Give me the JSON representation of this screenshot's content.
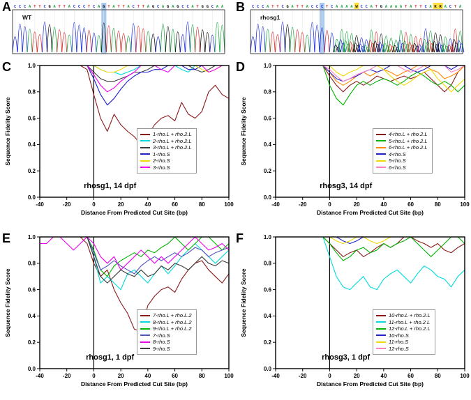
{
  "panel_letters": [
    "A",
    "B",
    "C",
    "D",
    "E",
    "F"
  ],
  "chromatograms": {
    "A": {
      "label": "WT",
      "sequence": "CCCATTCGATTACCCTCAGTATTACTTAGCAGAGCCATGGCAA",
      "highlight_index": 18,
      "ambiguous_indices": [],
      "messy_from": -1,
      "highlight_color": "#a9c9ee",
      "ambiguous_color": "#ffdf3f"
    },
    "B": {
      "label": "rhosg1",
      "sequence": "CCCATTCGATTACCCTCAAAAWCCATGAAAATATTCAKRACTA",
      "highlight_index": 14,
      "ambiguous_indices": [
        21,
        37,
        38
      ],
      "messy_from": 17,
      "highlight_color": "#a9c9ee",
      "ambiguous_color": "#ffdf3f"
    }
  },
  "base_colors": {
    "A": "#1faa45",
    "C": "#2233dd",
    "G": "#111111",
    "T": "#e03030"
  },
  "chart_data": [
    {
      "type": "line",
      "panel": "C",
      "annotation": "rhosg1, 14 dpf",
      "xlabel": "Distance From Predicted Cut Site (bp)",
      "ylabel": "Sequence Fidelity Score",
      "xlim": [
        -40,
        100
      ],
      "ylim": [
        0.0,
        1.0
      ],
      "xticks": [
        -40,
        -20,
        0,
        20,
        40,
        60,
        80,
        100
      ],
      "yticks": [
        0.0,
        0.2,
        0.4,
        0.6,
        0.8,
        1.0
      ],
      "cut_site_x": 0,
      "legend_position": "right-middle",
      "grid": false,
      "x": [
        -40,
        -35,
        -30,
        -25,
        -20,
        -15,
        -10,
        -5,
        0,
        5,
        10,
        15,
        20,
        25,
        30,
        35,
        40,
        45,
        50,
        55,
        60,
        65,
        70,
        75,
        80,
        85,
        90,
        95,
        100
      ],
      "series": [
        {
          "name": "1-rho.L + rho.2.L",
          "color": "#8b1a1a",
          "values": [
            1,
            1,
            1,
            1,
            1,
            1,
            1,
            0.97,
            0.78,
            0.6,
            0.5,
            0.63,
            0.55,
            0.5,
            0.46,
            0.4,
            0.47,
            0.55,
            0.6,
            0.62,
            0.58,
            0.72,
            0.63,
            0.6,
            0.65,
            0.8,
            0.85,
            0.78,
            0.75
          ]
        },
        {
          "name": "2-rho.L + rho.2.L",
          "color": "#00dcdc",
          "values": [
            1,
            1,
            1,
            1,
            1,
            1,
            1,
            1,
            1,
            0.97,
            0.95,
            0.95,
            0.93,
            0.95,
            0.97,
            1,
            1,
            1,
            1,
            1,
            1,
            0.97,
            0.95,
            1,
            1,
            1,
            1,
            1,
            1
          ]
        },
        {
          "name": "3-rho.L + rho.2.L",
          "color": "#3a3a3a",
          "values": [
            1,
            1,
            1,
            1,
            1,
            1,
            1,
            1,
            0.95,
            0.9,
            0.88,
            0.88,
            0.9,
            0.92,
            0.95,
            0.95,
            0.97,
            1,
            1,
            1,
            1,
            1,
            1,
            0.97,
            0.95,
            0.97,
            1,
            1,
            1
          ]
        },
        {
          "name": "1-rho.S",
          "color": "#2020cc",
          "values": [
            1,
            1,
            1,
            1,
            1,
            1,
            1,
            1,
            0.9,
            0.78,
            0.7,
            0.75,
            0.82,
            0.88,
            0.92,
            0.95,
            0.95,
            0.97,
            0.97,
            1,
            1,
            1,
            0.97,
            0.97,
            1,
            1,
            1,
            1,
            1
          ]
        },
        {
          "name": "2-rho.S",
          "color": "#f0d800",
          "values": [
            1,
            1,
            1,
            1,
            1,
            1,
            1,
            1,
            1,
            0.97,
            0.95,
            0.95,
            0.97,
            1,
            1,
            1,
            1,
            1,
            1,
            1,
            1,
            1,
            1,
            1,
            0.97,
            0.95,
            0.97,
            1,
            1
          ]
        },
        {
          "name": "3-rho.S",
          "color": "#f000f0",
          "values": [
            1,
            1,
            1,
            1,
            1,
            1,
            1,
            1,
            0.93,
            0.85,
            0.8,
            0.83,
            0.88,
            0.92,
            0.95,
            1,
            1,
            1,
            0.97,
            0.95,
            1,
            1,
            1,
            1,
            1,
            0.95,
            0.97,
            1,
            1
          ]
        }
      ]
    },
    {
      "type": "line",
      "panel": "D",
      "annotation": "rhosg3, 14 dpf",
      "xlabel": "Distance From Predicted Cut Site (bp)",
      "ylabel": "Sequence Fidelity Score",
      "xlim": [
        -40,
        100
      ],
      "ylim": [
        0.0,
        1.0
      ],
      "xticks": [
        -40,
        -20,
        0,
        20,
        40,
        60,
        80,
        100
      ],
      "yticks": [
        0.0,
        0.2,
        0.4,
        0.6,
        0.8,
        1.0
      ],
      "cut_site_x": 0,
      "legend_position": "right-middle",
      "grid": false,
      "x": [
        -40,
        -35,
        -30,
        -25,
        -20,
        -15,
        -10,
        -5,
        0,
        5,
        10,
        15,
        20,
        25,
        30,
        35,
        40,
        45,
        50,
        55,
        60,
        65,
        70,
        75,
        80,
        85,
        90,
        95,
        100
      ],
      "series": [
        {
          "name": "4-rho.L + rho.2.L",
          "color": "#8b1a1a",
          "values": [
            1,
            1,
            1,
            1,
            1,
            1,
            1,
            1,
            0.92,
            0.85,
            0.8,
            0.85,
            0.88,
            0.85,
            0.88,
            0.92,
            0.9,
            0.88,
            0.9,
            0.92,
            0.9,
            0.92,
            0.95,
            0.9,
            0.85,
            0.8,
            0.85,
            0.95,
            1
          ]
        },
        {
          "name": "5-rho.L + rho.2.L",
          "color": "#00b400",
          "values": [
            1,
            1,
            1,
            1,
            1,
            1,
            1,
            1,
            0.85,
            0.75,
            0.7,
            0.78,
            0.85,
            0.88,
            0.85,
            0.88,
            0.9,
            0.88,
            0.85,
            0.88,
            0.92,
            0.95,
            0.92,
            0.88,
            0.85,
            0.88,
            0.85,
            0.8,
            0.85
          ]
        },
        {
          "name": "6-rho.L + rho.2.L",
          "color": "#ff8800",
          "values": [
            1,
            1,
            1,
            1,
            1,
            1,
            1,
            1,
            0.95,
            0.88,
            0.85,
            0.88,
            0.92,
            0.95,
            0.92,
            0.95,
            0.97,
            0.95,
            0.92,
            0.95,
            0.97,
            1,
            1,
            0.97,
            0.95,
            0.9,
            0.92,
            0.95,
            1
          ]
        },
        {
          "name": "4-rho.S",
          "color": "#2020cc",
          "values": [
            1,
            1,
            1,
            1,
            1,
            1,
            1,
            1,
            0.95,
            0.9,
            0.88,
            0.9,
            0.92,
            0.95,
            0.97,
            0.95,
            0.97,
            1,
            1,
            1,
            0.97,
            0.95,
            0.97,
            1,
            1,
            1,
            0.97,
            1,
            1
          ]
        },
        {
          "name": "5-rho.S",
          "color": "#f0d800",
          "values": [
            1,
            1,
            1,
            1,
            1,
            1,
            1,
            1,
            1,
            0.95,
            0.92,
            0.95,
            0.97,
            1,
            1,
            1,
            0.97,
            0.92,
            0.88,
            0.85,
            0.88,
            0.92,
            0.95,
            0.97,
            0.9,
            0.85,
            0.8,
            0.85,
            0.9
          ]
        },
        {
          "name": "6-rho.S",
          "color": "#ff80c0",
          "values": [
            1,
            1,
            1,
            1,
            1,
            1,
            1,
            1,
            0.97,
            0.92,
            0.88,
            0.9,
            0.93,
            0.95,
            0.97,
            1,
            1,
            1,
            1,
            0.97,
            0.95,
            0.97,
            1,
            1,
            1,
            1,
            0.95,
            0.97,
            1
          ]
        }
      ]
    },
    {
      "type": "line",
      "panel": "E",
      "annotation": "rhosg1, 1 dpf",
      "xlabel": "Distance From Predicted Cut Site (bp)",
      "ylabel": "Sequence Fidelity Score",
      "xlim": [
        -40,
        100
      ],
      "ylim": [
        0.0,
        1.0
      ],
      "xticks": [
        -40,
        -20,
        0,
        20,
        40,
        60,
        80,
        100
      ],
      "yticks": [
        0.0,
        0.2,
        0.4,
        0.6,
        0.8,
        1.0
      ],
      "cut_site_x": 0,
      "legend_position": "right-middle",
      "grid": false,
      "x": [
        -40,
        -35,
        -30,
        -25,
        -20,
        -15,
        -10,
        -5,
        0,
        5,
        10,
        15,
        20,
        25,
        30,
        35,
        40,
        45,
        50,
        55,
        60,
        65,
        70,
        75,
        80,
        85,
        90,
        95,
        100
      ],
      "series": [
        {
          "name": "7-rho.L + rho.L.2",
          "color": "#8b1a1a",
          "values": [
            1,
            1,
            1,
            1,
            1,
            1,
            1,
            0.95,
            0.8,
            0.7,
            0.75,
            0.6,
            0.5,
            0.42,
            0.3,
            0.28,
            0.48,
            0.55,
            0.6,
            0.62,
            0.58,
            0.68,
            0.75,
            0.8,
            0.82,
            0.75,
            0.7,
            0.65,
            0.72
          ]
        },
        {
          "name": "8-rho.L + rho.L.2",
          "color": "#00dcdc",
          "values": [
            1,
            1,
            1,
            1,
            1,
            1,
            1,
            1,
            0.85,
            0.65,
            0.7,
            0.65,
            0.6,
            0.72,
            0.75,
            0.7,
            0.65,
            0.72,
            0.78,
            0.72,
            0.78,
            0.85,
            0.9,
            0.95,
            0.9,
            0.85,
            0.8,
            0.85,
            0.9
          ]
        },
        {
          "name": "9-rho.L + rho.L.2",
          "color": "#00b400",
          "values": [
            1,
            1,
            1,
            1,
            1,
            1,
            1,
            1,
            0.9,
            0.75,
            0.7,
            0.78,
            0.82,
            0.85,
            0.88,
            0.85,
            0.9,
            0.88,
            0.92,
            0.95,
            1,
            0.95,
            0.9,
            0.95,
            1,
            1,
            0.95,
            0.9,
            0.95
          ]
        },
        {
          "name": "7-rho.S",
          "color": "#5050c0",
          "values": [
            1,
            1,
            1,
            1,
            1,
            1,
            1,
            1,
            0.88,
            0.75,
            0.78,
            0.82,
            0.78,
            0.75,
            0.72,
            0.78,
            0.82,
            0.85,
            0.82,
            0.85,
            0.88,
            0.85,
            0.88,
            0.92,
            0.9,
            0.85,
            0.88,
            0.9,
            0.92
          ]
        },
        {
          "name": "8-rho.S",
          "color": "#f000f0",
          "values": [
            0.95,
            0.95,
            1,
            1,
            0.95,
            0.9,
            0.95,
            1,
            0.95,
            0.85,
            0.8,
            0.85,
            0.75,
            0.8,
            0.85,
            0.9,
            0.85,
            0.8,
            0.85,
            0.8,
            0.85,
            0.9,
            0.95,
            1,
            0.95,
            0.9,
            0.92,
            0.95,
            0.9
          ]
        },
        {
          "name": "9-rho.S",
          "color": "#3a3a3a",
          "values": [
            1,
            1,
            1,
            1,
            1,
            1,
            1,
            1,
            0.85,
            0.7,
            0.65,
            0.7,
            0.75,
            0.72,
            0.7,
            0.75,
            0.7,
            0.72,
            0.78,
            0.75,
            0.8,
            0.78,
            0.75,
            0.8,
            0.85,
            0.8,
            0.78,
            0.82,
            0.8
          ]
        }
      ]
    },
    {
      "type": "line",
      "panel": "F",
      "annotation": "rhosg3, 1 dpf",
      "xlabel": "Distance From Predicted Cut Site (bp)",
      "ylabel": "Sequence Fidelity Score",
      "xlim": [
        -40,
        100
      ],
      "ylim": [
        0.0,
        1.0
      ],
      "xticks": [
        -40,
        -20,
        0,
        20,
        40,
        60,
        80,
        100
      ],
      "yticks": [
        0.0,
        0.2,
        0.4,
        0.6,
        0.8,
        1.0
      ],
      "cut_site_x": 0,
      "legend_position": "right-middle",
      "grid": false,
      "x": [
        -40,
        -35,
        -30,
        -25,
        -20,
        -15,
        -10,
        -5,
        0,
        5,
        10,
        15,
        20,
        25,
        30,
        35,
        40,
        45,
        50,
        55,
        60,
        65,
        70,
        75,
        80,
        85,
        90,
        95,
        100
      ],
      "series": [
        {
          "name": "10-rho.L + rho.2.L",
          "color": "#8b1a1a",
          "values": [
            1,
            1,
            1,
            1,
            1,
            1,
            1,
            1,
            0.95,
            0.9,
            0.85,
            0.88,
            0.9,
            0.85,
            0.88,
            0.92,
            0.95,
            0.92,
            0.95,
            1,
            1,
            0.97,
            0.95,
            0.92,
            0.95,
            0.9,
            0.88,
            0.92,
            0.95
          ]
        },
        {
          "name": "11-rho.L + rho.2.L",
          "color": "#00dcdc",
          "values": [
            1,
            1,
            1,
            1,
            1,
            1,
            1,
            1,
            0.85,
            0.7,
            0.62,
            0.6,
            0.65,
            0.7,
            0.62,
            0.6,
            0.68,
            0.72,
            0.75,
            0.7,
            0.65,
            0.72,
            0.78,
            0.75,
            0.7,
            0.68,
            0.62,
            0.7,
            0.75
          ]
        },
        {
          "name": "12-rho.L + rho.2.L",
          "color": "#00b400",
          "values": [
            1,
            1,
            1,
            1,
            1,
            1,
            1,
            1,
            0.95,
            0.88,
            0.82,
            0.85,
            0.9,
            0.92,
            0.88,
            0.9,
            0.95,
            0.92,
            0.95,
            0.97,
            1,
            0.95,
            0.9,
            0.85,
            0.9,
            0.95,
            1,
            1,
            0.95
          ]
        },
        {
          "name": "10-rho.S",
          "color": "#2020cc",
          "values": [
            1,
            1,
            1,
            1,
            1,
            1,
            1,
            1,
            1,
            1,
            0.97,
            0.95,
            0.97,
            1,
            1,
            1,
            1,
            1,
            1,
            1,
            1,
            1,
            1,
            1,
            1,
            1,
            1,
            1,
            1
          ]
        },
        {
          "name": "11-rho.S",
          "color": "#f0d800",
          "values": [
            1,
            1,
            1,
            1,
            1,
            1,
            1,
            1,
            1,
            0.97,
            0.95,
            0.97,
            1,
            1,
            0.97,
            0.95,
            0.97,
            1,
            1,
            1,
            1,
            1,
            1,
            1,
            1,
            1,
            1,
            1,
            1
          ]
        },
        {
          "name": "12-rho.S",
          "color": "#ff80c0",
          "values": [
            1,
            1,
            1,
            1,
            1,
            1,
            1,
            1,
            1,
            1,
            1,
            1,
            1,
            1,
            1,
            1,
            1,
            1,
            1,
            1,
            1,
            1,
            1,
            1,
            1,
            1,
            1,
            1,
            1
          ]
        }
      ]
    }
  ]
}
